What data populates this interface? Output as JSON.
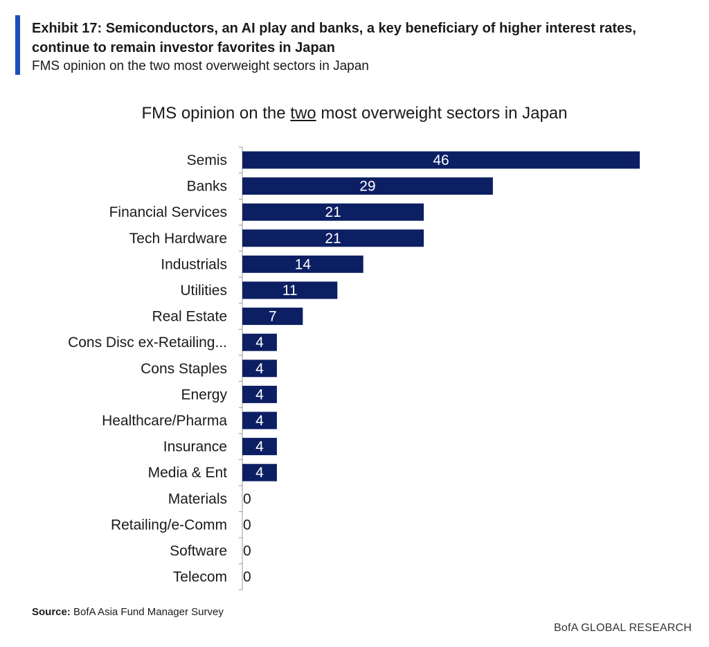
{
  "exhibit": {
    "title": "Exhibit 17: Semiconductors, an AI play and banks, a key beneficiary of higher interest rates, continue to remain investor favorites in Japan",
    "subtitle": "FMS opinion on the two most overweight sectors in Japan"
  },
  "chart_data": {
    "type": "bar",
    "orientation": "horizontal",
    "title_parts": {
      "before": "FMS opinion on the ",
      "underlined": "two",
      "after": " most overweight sectors in Japan"
    },
    "categories": [
      "Semis",
      "Banks",
      "Financial Services",
      "Tech Hardware",
      "Industrials",
      "Utilities",
      "Real Estate",
      "Cons Disc ex-Retailing...",
      "Cons Staples",
      "Energy",
      "Healthcare/Pharma",
      "Insurance",
      "Media & Ent",
      "Materials",
      "Retailing/e-Comm",
      "Software",
      "Telecom"
    ],
    "values": [
      46,
      29,
      21,
      21,
      14,
      11,
      7,
      4,
      4,
      4,
      4,
      4,
      4,
      0,
      0,
      0,
      0
    ],
    "xlim": [
      0,
      46
    ],
    "bar_color": "#0c1f63",
    "label_color_inside": "#ffffff",
    "label_color_outside": "#1a1a1a",
    "grid": false
  },
  "footer": {
    "source_label": "Source:",
    "source_text": " BofA Asia Fund Manager Survey",
    "brand": "BofA GLOBAL RESEARCH"
  }
}
